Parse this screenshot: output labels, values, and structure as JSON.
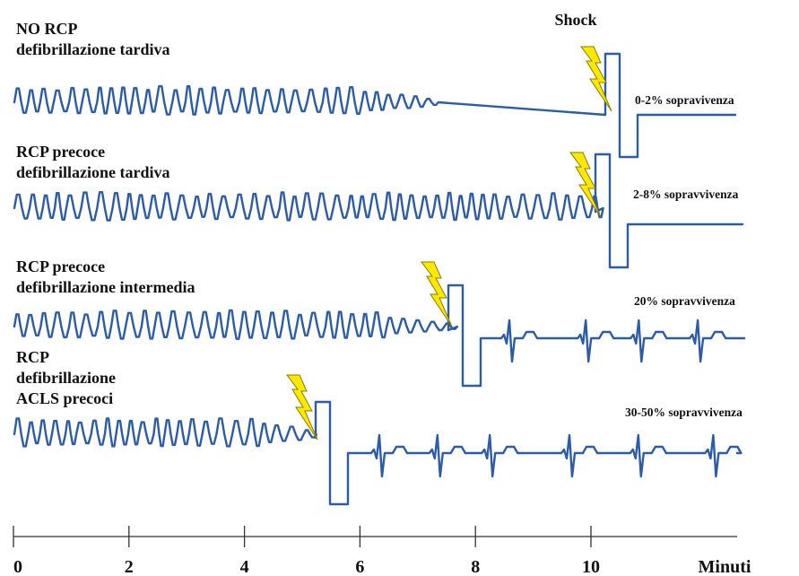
{
  "shock_label": "Shock",
  "rows": [
    {
      "label_lines": [
        "NO RCP",
        "defibrillazione tardiva"
      ],
      "outcome": "0-2% sopravivenza"
    },
    {
      "label_lines": [
        "RCP precoce",
        "defibrillazione tardiva"
      ],
      "outcome": "2-8% sopravvivenza"
    },
    {
      "label_lines": [
        "RCP precoce",
        "defibrillazione intermedia"
      ],
      "outcome": "20% sopravvivenza"
    },
    {
      "label_lines": [
        "RCP",
        "defibrillazione",
        "ACLS precoci"
      ],
      "outcome": "30-50% sopravvivenza"
    }
  ],
  "axis": {
    "ticks": [
      "0",
      "2",
      "4",
      "6",
      "8",
      "10"
    ],
    "unit": "Minuti"
  }
}
